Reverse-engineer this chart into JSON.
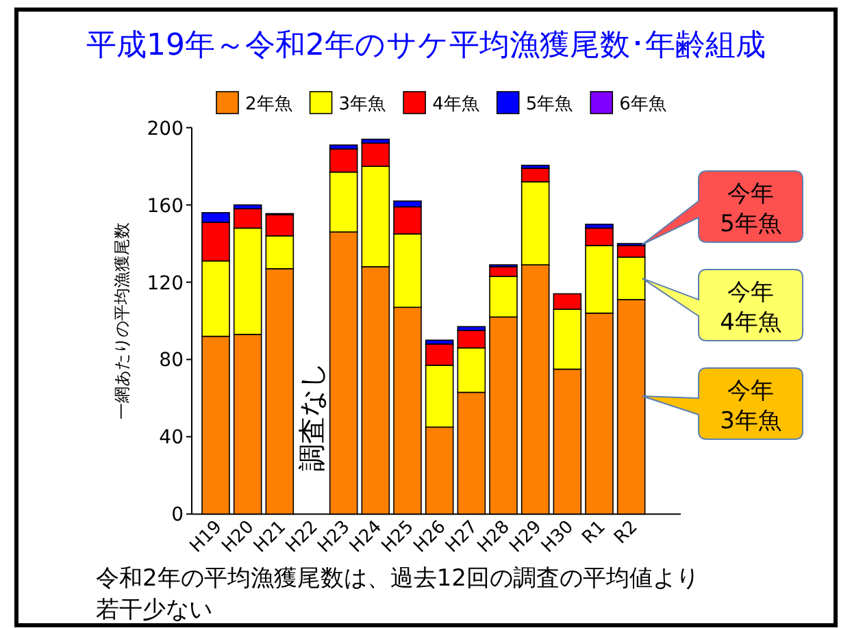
{
  "chart_data": {
    "type": "bar",
    "stacked": true,
    "title": "平成19年～令和2年のサケ平均漁獲尾数･年齢組成",
    "ylabel": "一網あたりの平均漁獲尾数",
    "categories": [
      "H19",
      "H20",
      "H21",
      "H22",
      "H23",
      "H24",
      "H25",
      "H26",
      "H27",
      "H28",
      "H29",
      "H30",
      "R1",
      "R2"
    ],
    "series": [
      {
        "name": "2年魚",
        "color": "#ff8000",
        "values": [
          92,
          93,
          127,
          null,
          146,
          128,
          107,
          45,
          63,
          102,
          129,
          75,
          104,
          111
        ]
      },
      {
        "name": "3年魚",
        "color": "#ffff00",
        "values": [
          39,
          55,
          17,
          null,
          31,
          52,
          38,
          32,
          23,
          21,
          43,
          31,
          35,
          22
        ]
      },
      {
        "name": "4年魚",
        "color": "#ff0000",
        "values": [
          20,
          10,
          11,
          null,
          12,
          12,
          14,
          11,
          9,
          5,
          7,
          8,
          9,
          6
        ]
      },
      {
        "name": "5年魚",
        "color": "#0000ff",
        "values": [
          5,
          2,
          0.5,
          null,
          2,
          2,
          3,
          2,
          2,
          1,
          1.5,
          null,
          2,
          1
        ]
      },
      {
        "name": "6年魚",
        "color": "#8000ff",
        "values": [
          null,
          null,
          null,
          null,
          null,
          null,
          null,
          null,
          null,
          null,
          null,
          null,
          null,
          null
        ]
      }
    ],
    "ylim": [
      0,
      200
    ],
    "yticks": [
      0,
      40,
      80,
      120,
      160,
      200
    ],
    "legend": "top",
    "annotations": [
      "今年\n5年魚",
      "今年\n4年魚",
      "今年\n3年魚",
      "調査なし",
      "令和2年の平均漁獲尾数は、過去12回の調査の平均値より若干少ない"
    ]
  }
}
